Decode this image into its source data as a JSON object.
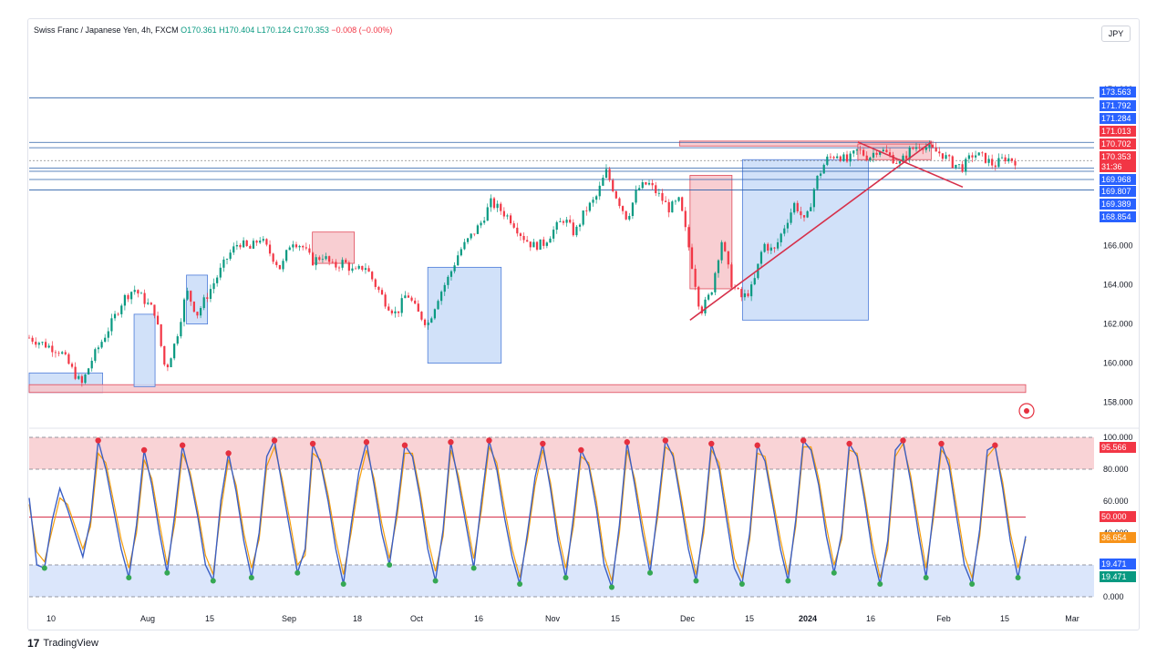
{
  "header": {
    "symbol": "Swiss Franc / Japanese Yen, 4h, FXCM",
    "o_label": "O",
    "o_value": "170.361",
    "h_label": "H",
    "h_value": "170.404",
    "l_label": "L",
    "l_value": "170.124",
    "c_label": "C",
    "c_value": "170.353",
    "change": "−0.008 (−0.00%)"
  },
  "currency_button": "JPY",
  "branding": {
    "text": "TradingView"
  },
  "colors": {
    "up": "#089981",
    "down": "#f23645",
    "level_line": "#2a5fa8",
    "blue_zone": "#c9dcf8",
    "red_zone": "#f7c6ca",
    "trend": "#d6304a",
    "osc_main": "#3b5fc4",
    "osc_signal": "#f59e0b"
  },
  "chart_data": [
    {
      "type": "candlestick",
      "title": "",
      "ylim": [
        157.0,
        176.0
      ],
      "y_ticks": [
        "174.000",
        "166.000",
        "164.000",
        "162.000",
        "160.000",
        "158.000"
      ],
      "x_ticks": [
        "10",
        "Aug",
        "15",
        "Sep",
        "18",
        "Oct",
        "16",
        "Nov",
        "15",
        "Dec",
        "15",
        "2024",
        "16",
        "Feb",
        "15",
        "Mar"
      ],
      "price_path": [
        [
          0,
          161.3
        ],
        [
          3,
          160.6
        ],
        [
          5,
          158.9
        ],
        [
          6,
          160.2
        ],
        [
          8,
          162.2
        ],
        [
          9,
          163.3
        ],
        [
          10,
          163.8
        ],
        [
          12,
          162.6
        ],
        [
          13,
          159.6
        ],
        [
          14,
          161.2
        ],
        [
          15,
          163.7
        ],
        [
          16,
          162.5
        ],
        [
          17,
          163.5
        ],
        [
          18,
          164.5
        ],
        [
          19,
          165.5
        ],
        [
          20,
          166.2
        ],
        [
          21,
          165.8
        ],
        [
          22,
          166.4
        ],
        [
          23,
          165.6
        ],
        [
          24,
          164.8
        ],
        [
          25,
          166.3
        ],
        [
          26,
          166.0
        ],
        [
          27,
          165.2
        ],
        [
          28,
          165.5
        ],
        [
          29,
          164.9
        ],
        [
          30,
          165.2
        ],
        [
          31,
          164.6
        ],
        [
          32,
          165.0
        ],
        [
          33,
          164.0
        ],
        [
          34,
          163.1
        ],
        [
          35,
          162.5
        ],
        [
          36,
          163.6
        ],
        [
          37,
          162.6
        ],
        [
          38,
          162.0
        ],
        [
          39,
          163.4
        ],
        [
          40,
          164.4
        ],
        [
          41,
          165.7
        ],
        [
          42,
          166.4
        ],
        [
          43,
          167.1
        ],
        [
          44,
          168.2
        ],
        [
          45,
          167.8
        ],
        [
          46,
          167.3
        ],
        [
          47,
          166.5
        ],
        [
          48,
          166.0
        ],
        [
          49,
          166.1
        ],
        [
          50,
          166.8
        ],
        [
          51,
          167.4
        ],
        [
          52,
          166.6
        ],
        [
          53,
          167.8
        ],
        [
          54,
          168.4
        ],
        [
          55,
          169.8
        ],
        [
          56,
          168.5
        ],
        [
          57,
          167.4
        ],
        [
          58,
          168.9
        ],
        [
          59,
          169.2
        ],
        [
          60,
          168.6
        ],
        [
          61,
          167.9
        ],
        [
          62,
          168.3
        ],
        [
          63,
          165.6
        ],
        [
          64,
          162.6
        ],
        [
          65,
          163.6
        ],
        [
          66,
          166.3
        ],
        [
          67,
          164.0
        ],
        [
          68,
          163.3
        ],
        [
          69,
          163.9
        ],
        [
          70,
          166.1
        ],
        [
          71,
          165.7
        ],
        [
          72,
          167.0
        ],
        [
          73,
          168.2
        ],
        [
          74,
          167.1
        ],
        [
          75,
          169.3
        ],
        [
          76,
          170.4
        ],
        [
          77,
          170.7
        ],
        [
          78,
          170.3
        ],
        [
          79,
          170.9
        ],
        [
          80,
          170.5
        ],
        [
          81,
          171.0
        ],
        [
          82,
          170.6
        ],
        [
          83,
          170.2
        ],
        [
          84,
          170.9
        ],
        [
          85,
          171.2
        ],
        [
          86,
          170.9
        ],
        [
          87,
          170.7
        ],
        [
          88,
          170.2
        ],
        [
          89,
          170.0
        ],
        [
          90,
          170.7
        ],
        [
          91,
          170.5
        ],
        [
          92,
          170.1
        ],
        [
          93,
          170.5
        ],
        [
          94,
          170.35
        ]
      ],
      "horizontal_levels": [
        "173.563",
        "171.284",
        "171.013",
        "169.968",
        "169.807",
        "169.389",
        "168.854"
      ],
      "zones": [
        {
          "kind": "demand",
          "from": 0,
          "to": 7,
          "low": 158.5,
          "high": 159.5
        },
        {
          "kind": "supply",
          "from": 0,
          "to": 95,
          "low": 158.5,
          "high": 158.9
        },
        {
          "kind": "demand",
          "from": 10,
          "to": 12,
          "low": 158.8,
          "high": 162.5
        },
        {
          "kind": "demand",
          "from": 15,
          "to": 17,
          "low": 162.0,
          "high": 164.5
        },
        {
          "kind": "supply",
          "from": 27,
          "to": 31,
          "low": 165.1,
          "high": 166.7
        },
        {
          "kind": "demand",
          "from": 38,
          "to": 45,
          "low": 160.0,
          "high": 164.9
        },
        {
          "kind": "supply",
          "from": 63,
          "to": 67,
          "low": 163.8,
          "high": 169.6
        },
        {
          "kind": "demand",
          "from": 68,
          "to": 80,
          "low": 162.2,
          "high": 170.4
        },
        {
          "kind": "supply",
          "from": 62,
          "to": 86,
          "low": 171.1,
          "high": 171.35
        },
        {
          "kind": "supply",
          "from": 79,
          "to": 86,
          "low": 170.4,
          "high": 171.2
        }
      ],
      "trendlines": [
        {
          "from": [
            63,
            162.2
          ],
          "to": [
            86,
            171.3
          ]
        },
        {
          "from": [
            79,
            171.3
          ],
          "to": [
            89,
            169.0
          ]
        }
      ],
      "right_axis_labels": [
        {
          "text": "173.563",
          "bg": "#2962ff"
        },
        {
          "text": "171.792",
          "bg": "#2962ff"
        },
        {
          "text": "171.284",
          "bg": "#2962ff"
        },
        {
          "text": "171.013",
          "bg": "#f23645"
        },
        {
          "text": "170.702",
          "bg": "#f23645"
        },
        {
          "text": "170.353",
          "bg": "#f23645"
        },
        {
          "text": "31:36",
          "bg": "#f23645"
        },
        {
          "text": "169.968",
          "bg": "#2962ff"
        },
        {
          "text": "169.807",
          "bg": "#2962ff"
        },
        {
          "text": "169.389",
          "bg": "#2962ff"
        },
        {
          "text": "168.854",
          "bg": "#2962ff"
        }
      ]
    },
    {
      "type": "line",
      "title": "",
      "ylim": [
        0,
        100
      ],
      "y_ticks": [
        "100.000",
        "80.000",
        "60.000",
        "40.000",
        "0.000"
      ],
      "overbought": 80,
      "oversold": 20,
      "midline": 50,
      "main_values": [
        62,
        20,
        18,
        48,
        68,
        55,
        40,
        25,
        48,
        98,
        80,
        55,
        30,
        12,
        45,
        92,
        70,
        40,
        15,
        52,
        95,
        75,
        50,
        20,
        10,
        60,
        90,
        66,
        35,
        12,
        40,
        88,
        98,
        70,
        42,
        15,
        30,
        96,
        84,
        60,
        30,
        8,
        45,
        78,
        97,
        70,
        40,
        20,
        55,
        95,
        88,
        62,
        30,
        10,
        42,
        97,
        72,
        45,
        18,
        60,
        98,
        80,
        50,
        25,
        8,
        40,
        75,
        96,
        68,
        35,
        12,
        50,
        92,
        82,
        55,
        20,
        6,
        45,
        97,
        70,
        40,
        15,
        55,
        98,
        88,
        60,
        30,
        10,
        45,
        96,
        80,
        48,
        18,
        8,
        40,
        95,
        85,
        58,
        30,
        10,
        48,
        98,
        92,
        70,
        38,
        15,
        40,
        96,
        88,
        60,
        28,
        8,
        35,
        92,
        98,
        72,
        40,
        12,
        55,
        96,
        82,
        50,
        20,
        8,
        42,
        92,
        95,
        68,
        35,
        12,
        38
      ],
      "signal_values": [
        58,
        28,
        22,
        42,
        62,
        58,
        44,
        30,
        44,
        90,
        84,
        60,
        36,
        18,
        40,
        86,
        74,
        46,
        20,
        46,
        90,
        78,
        54,
        26,
        14,
        54,
        86,
        70,
        40,
        18,
        36,
        82,
        94,
        74,
        48,
        20,
        26,
        90,
        86,
        64,
        36,
        14,
        40,
        72,
        92,
        74,
        46,
        24,
        50,
        90,
        90,
        66,
        36,
        16,
        38,
        92,
        76,
        50,
        24,
        54,
        94,
        84,
        56,
        30,
        12,
        36,
        70,
        92,
        72,
        40,
        18,
        44,
        88,
        84,
        60,
        26,
        10,
        40,
        92,
        74,
        46,
        20,
        50,
        94,
        90,
        64,
        36,
        14,
        40,
        92,
        84,
        54,
        24,
        12,
        36,
        90,
        88,
        62,
        36,
        14,
        44,
        94,
        94,
        74,
        44,
        20,
        36,
        92,
        90,
        64,
        34,
        12,
        30,
        88,
        96,
        76,
        46,
        18,
        50,
        92,
        86,
        56,
        26,
        12,
        38,
        88,
        94,
        72,
        40,
        18,
        36
      ],
      "right_axis_labels": [
        {
          "text": "95.566",
          "bg": "#f23645"
        },
        {
          "text": "50.000",
          "bg": "#f23645"
        },
        {
          "text": "36.654",
          "bg": "#f7931a"
        },
        {
          "text": "19.471",
          "bg": "#2962ff"
        },
        {
          "text": "19.471",
          "bg": "#089981"
        }
      ]
    }
  ]
}
